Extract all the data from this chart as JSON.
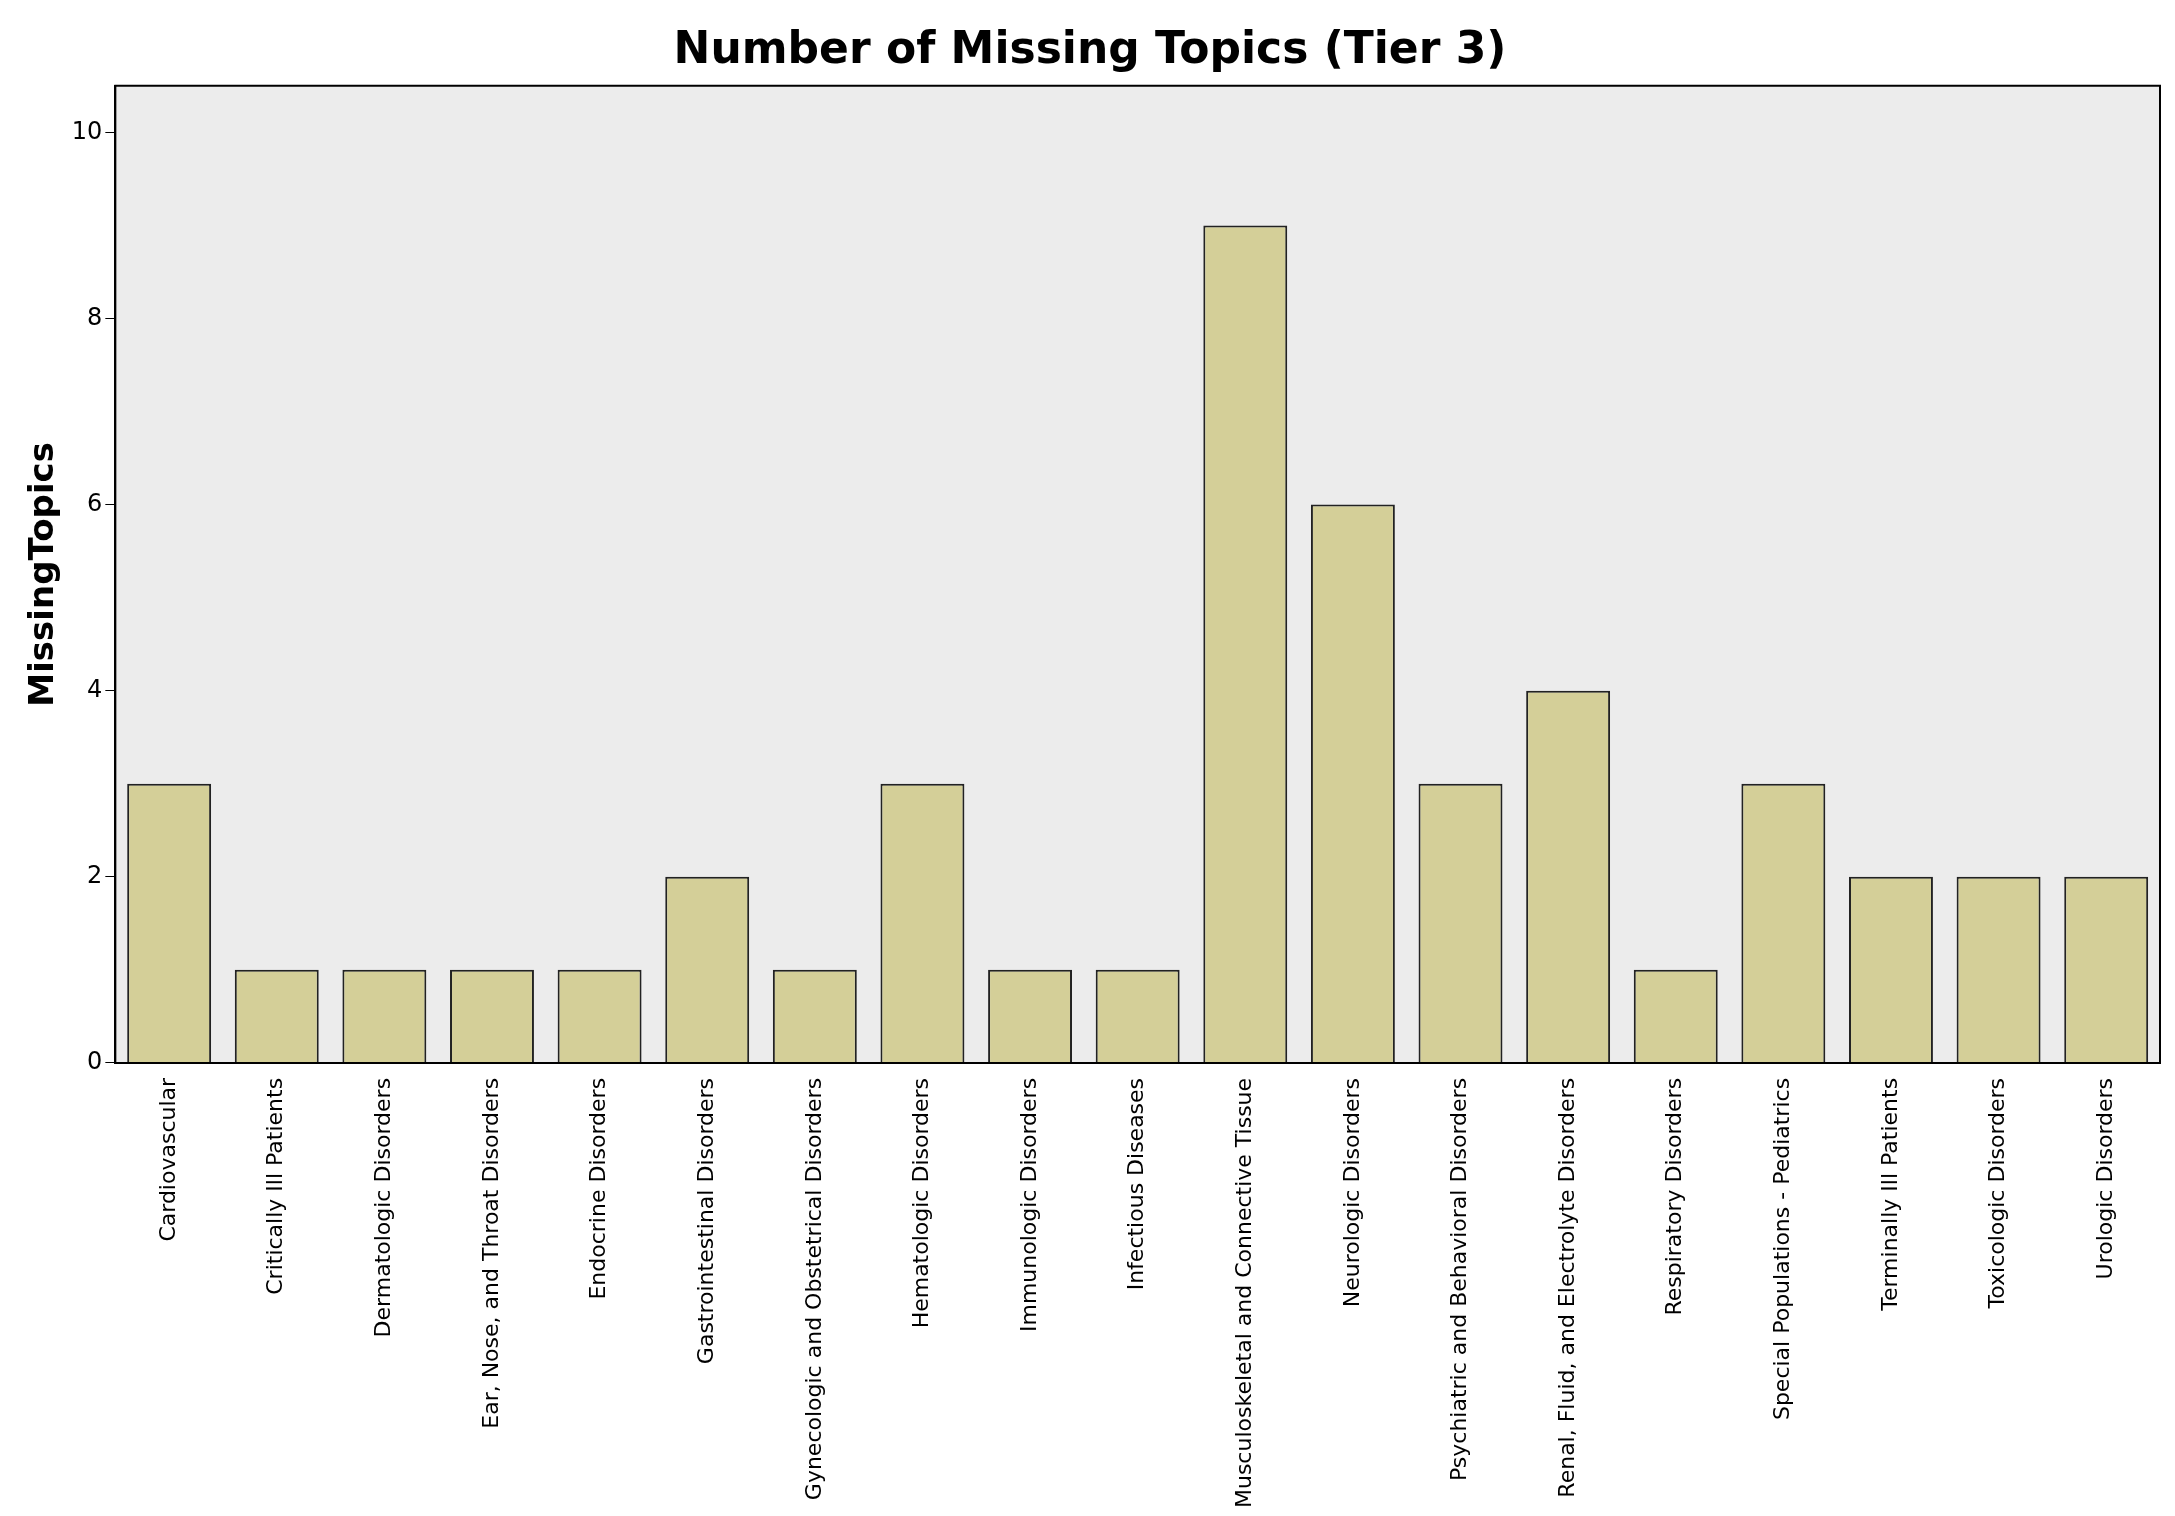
{
  "chart_data": {
    "type": "bar",
    "title": "Number of Missing Topics (Tier 3)",
    "ylabel": "MissingTopics",
    "categories": [
      "Cardiovascular",
      "Critically Ill Patients",
      "Dermatologic Disorders",
      "Ear, Nose, and Throat Disorders",
      "Endocrine Disorders",
      "Gastrointestinal Disorders",
      "Gynecologic and Obstetrical Disorders",
      "Hematologic Disorders",
      "Immunologic Disorders",
      "Infectious Diseases",
      "Musculoskeletal and Connective Tissue",
      "Neurologic Disorders",
      "Psychiatric and Behavioral Disorders",
      "Renal, Fluid, and Electrolyte Disorders",
      "Respiratory Disorders",
      "Special Populations - Pediatrics",
      "Terminally Ill Patients",
      "Toxicologic Disorders",
      "Urologic Disorders"
    ],
    "values": [
      3,
      1,
      1,
      1,
      1,
      2,
      1,
      3,
      1,
      1,
      9,
      6,
      3,
      4,
      1,
      3,
      2,
      2,
      2
    ],
    "color": "#d4cf98",
    "ylim": [
      0,
      10.5
    ],
    "yticks": [
      0,
      2,
      4,
      6,
      8,
      10
    ],
    "grid": false,
    "legend": false
  }
}
